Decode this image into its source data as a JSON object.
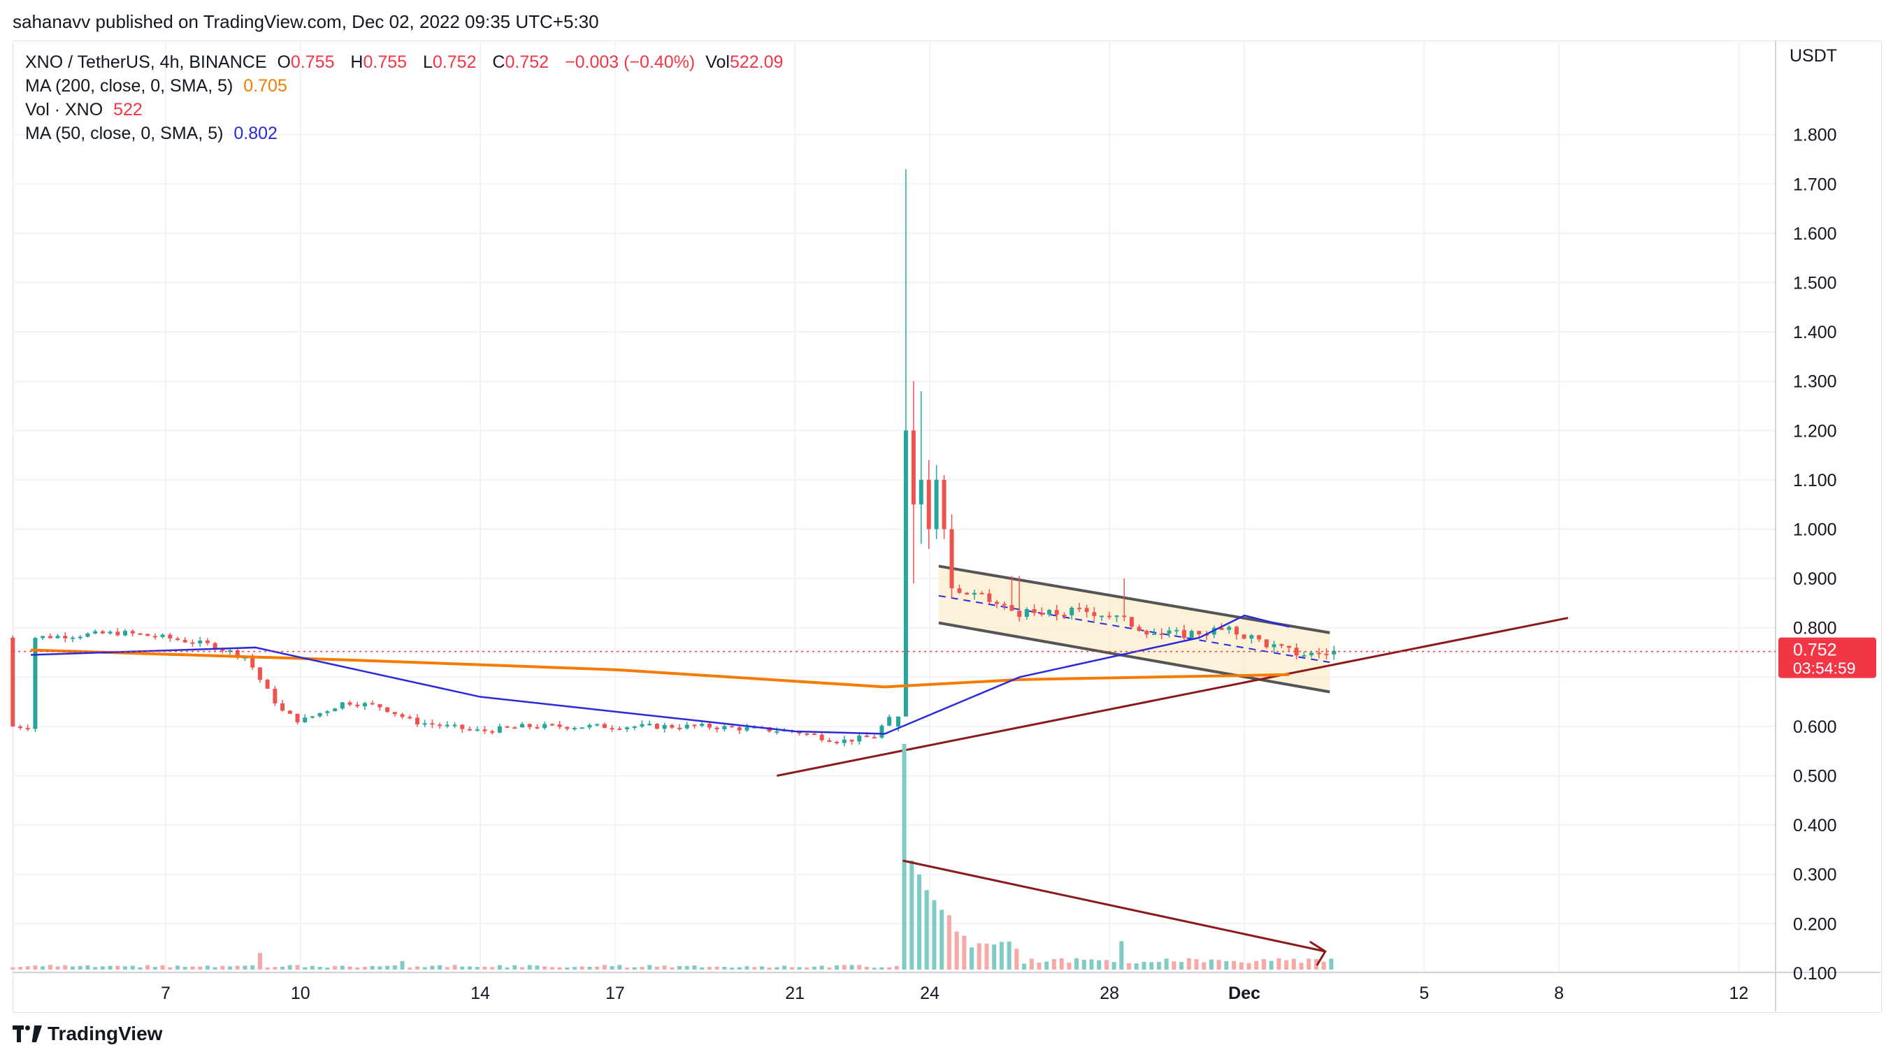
{
  "header": {
    "publisher": "sahanavv published on TradingView.com, Dec 02, 2022 09:35 UTC+5:30"
  },
  "legend": {
    "symbol": "XNO / TetherUS, 4h, BINANCE",
    "o_label": "O",
    "o_value": "0.755",
    "h_label": "H",
    "h_value": "0.755",
    "l_label": "L",
    "l_value": "0.752",
    "c_label": "C",
    "c_value": "0.752",
    "change": "−0.003 (−0.40%)",
    "vol_label": "Vol",
    "vol_value": "522.09",
    "ma200_label": "MA (200, close, 0, SMA, 5)",
    "ma200_value": "0.705",
    "vol_xno_label": "Vol · XNO",
    "vol_xno_value": "522",
    "ma50_label": "MA (50, close, 0, SMA, 5)",
    "ma50_value": "0.802"
  },
  "axis": {
    "unit": "USDT",
    "price_ticks": [
      "1.800",
      "1.700",
      "1.600",
      "1.500",
      "1.400",
      "1.300",
      "1.200",
      "1.100",
      "1.000",
      "0.900",
      "0.800",
      "0.600",
      "0.500",
      "0.400",
      "0.300",
      "0.200",
      "0.100"
    ],
    "date_ticks": [
      "7",
      "10",
      "14",
      "17",
      "21",
      "24",
      "28",
      "Dec",
      "5",
      "8",
      "12"
    ],
    "current_price": "0.752",
    "countdown": "03:54:59"
  },
  "colors": {
    "up": "#26a69a",
    "down": "#ef5350",
    "ma200": "#f57c00",
    "ma50": "#2a2adb",
    "trendline": "#8b1a1a",
    "channel": "#555555",
    "channel_fill": "#fbeed0",
    "price_tag": "#f23645"
  },
  "footer": {
    "brand": "TradingView"
  },
  "chart_data": {
    "type": "candlestick",
    "symbol": "XNO/USDT",
    "interval": "4h",
    "x_range_days": [
      "Nov 4",
      "Dec 14"
    ],
    "ylim": [
      0.5,
      1.85
    ],
    "price_path": [
      {
        "date": "Nov 4",
        "price": 0.78
      },
      {
        "date": "Nov 6",
        "price": 0.79
      },
      {
        "date": "Nov 7",
        "price": 0.78
      },
      {
        "date": "Nov 8",
        "price": 0.76
      },
      {
        "date": "Nov 9",
        "price": 0.68
      },
      {
        "date": "Nov 9.5",
        "price": 0.63
      },
      {
        "date": "Nov 10",
        "price": 0.61
      },
      {
        "date": "Nov 11",
        "price": 0.65
      },
      {
        "date": "Nov 12",
        "price": 0.62
      },
      {
        "date": "Nov 14",
        "price": 0.59
      },
      {
        "date": "Nov 15",
        "price": 0.6
      },
      {
        "date": "Nov 17",
        "price": 0.6
      },
      {
        "date": "Nov 19",
        "price": 0.6
      },
      {
        "date": "Nov 21",
        "price": 0.59
      },
      {
        "date": "Nov 22",
        "price": 0.57
      },
      {
        "date": "Nov 23",
        "price": 0.6
      },
      {
        "date": "Nov 23.5",
        "price": 1.2
      },
      {
        "date": "Nov 24",
        "price": 1.06
      },
      {
        "date": "Nov 24.5",
        "price": 0.89
      },
      {
        "date": "Nov 26",
        "price": 0.83
      },
      {
        "date": "Nov 28",
        "price": 0.79
      },
      {
        "date": "Nov 29",
        "price": 0.76
      },
      {
        "date": "Nov 30",
        "price": 0.77
      },
      {
        "date": "Dec 1",
        "price": 0.76
      },
      {
        "date": "Dec 2",
        "price": 0.752
      }
    ],
    "spike_high": 1.73,
    "ma200": [
      {
        "date": "Nov 4",
        "value": 0.755
      },
      {
        "date": "Nov 11",
        "value": 0.735
      },
      {
        "date": "Nov 17",
        "value": 0.715
      },
      {
        "date": "Nov 23",
        "value": 0.68
      },
      {
        "date": "Nov 26",
        "value": 0.695
      },
      {
        "date": "Dec 2",
        "value": 0.705
      }
    ],
    "ma50": [
      {
        "date": "Nov 4",
        "value": 0.745
      },
      {
        "date": "Nov 9",
        "value": 0.76
      },
      {
        "date": "Nov 14",
        "value": 0.66
      },
      {
        "date": "Nov 21",
        "value": 0.59
      },
      {
        "date": "Nov 23",
        "value": 0.585
      },
      {
        "date": "Nov 26",
        "value": 0.7
      },
      {
        "date": "Nov 30",
        "value": 0.78
      },
      {
        "date": "Dec 1",
        "value": 0.825
      },
      {
        "date": "Dec 2",
        "value": 0.802
      }
    ],
    "volume_max_scale": 0.5,
    "volume_spike": 0.475,
    "annotations": [
      "descending-channel",
      "ascending-trendline",
      "volume-downtrend-arrow"
    ]
  }
}
